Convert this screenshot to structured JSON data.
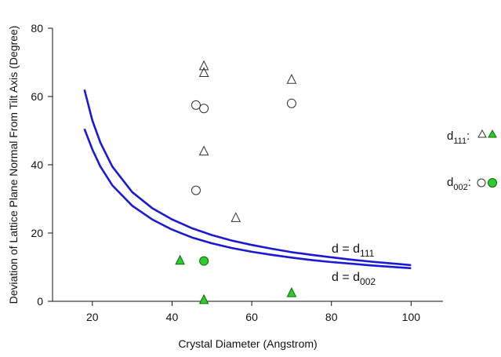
{
  "chart_data": {
    "type": "scatter",
    "xlabel": "Crystal Diameter (Angstrom)",
    "ylabel": "Deviation of Lattice Plane Normal From Tilt Axis (Degree)",
    "xlim": [
      10,
      108
    ],
    "ylim": [
      0,
      80
    ],
    "x_ticks": [
      "20",
      "40",
      "60",
      "80",
      "100"
    ],
    "y_ticks": [
      "0",
      "20",
      "40",
      "60",
      "80"
    ],
    "grid": false,
    "curve_color": "#1a1ad6",
    "marker_fill_color": "#2ecc2e",
    "series": [
      {
        "name": "d = d111",
        "kind": "line",
        "label_main": "d = d",
        "label_sub": "111",
        "x": [
          18,
          20,
          22,
          25,
          30,
          35,
          40,
          45,
          50,
          55,
          60,
          65,
          70,
          75,
          80,
          85,
          90,
          95,
          100
        ],
        "y": [
          62.0,
          53.0,
          46.5,
          39.5,
          32.0,
          27.3,
          24.0,
          21.4,
          19.4,
          17.8,
          16.5,
          15.4,
          14.4,
          13.6,
          12.9,
          12.2,
          11.6,
          11.1,
          10.6
        ]
      },
      {
        "name": "d = d002",
        "kind": "line",
        "label_main": "d = d",
        "label_sub": "002",
        "x": [
          18,
          20,
          22,
          25,
          30,
          35,
          40,
          45,
          50,
          55,
          60,
          65,
          70,
          75,
          80,
          85,
          90,
          95,
          100
        ],
        "y": [
          50.5,
          44.5,
          39.5,
          34.0,
          28.0,
          24.0,
          21.0,
          18.7,
          17.0,
          15.6,
          14.5,
          13.6,
          12.8,
          12.1,
          11.5,
          11.0,
          10.5,
          10.1,
          9.7
        ]
      },
      {
        "name": "d111 open",
        "kind": "marker",
        "marker": "triangle",
        "filled": false,
        "x": [
          48,
          48,
          48,
          56,
          70
        ],
        "y": [
          69,
          67,
          44,
          24.5,
          65
        ]
      },
      {
        "name": "d111 filled",
        "kind": "marker",
        "marker": "triangle",
        "filled": true,
        "x": [
          42,
          48,
          70
        ],
        "y": [
          12,
          0.5,
          2.5
        ]
      },
      {
        "name": "d002 open",
        "kind": "marker",
        "marker": "circle",
        "filled": false,
        "x": [
          46,
          48,
          46,
          70
        ],
        "y": [
          57.5,
          56.5,
          32.5,
          58
        ]
      },
      {
        "name": "d002 filled",
        "kind": "marker",
        "marker": "circle",
        "filled": true,
        "x": [
          48
        ],
        "y": [
          11.8
        ]
      }
    ],
    "legend": {
      "placement": "right",
      "entries": [
        {
          "label_main": "d",
          "label_sub": "111",
          "suffix": ":",
          "marker": "triangle"
        },
        {
          "label_main": "d",
          "label_sub": "002",
          "suffix": ":",
          "marker": "circle"
        }
      ]
    }
  }
}
